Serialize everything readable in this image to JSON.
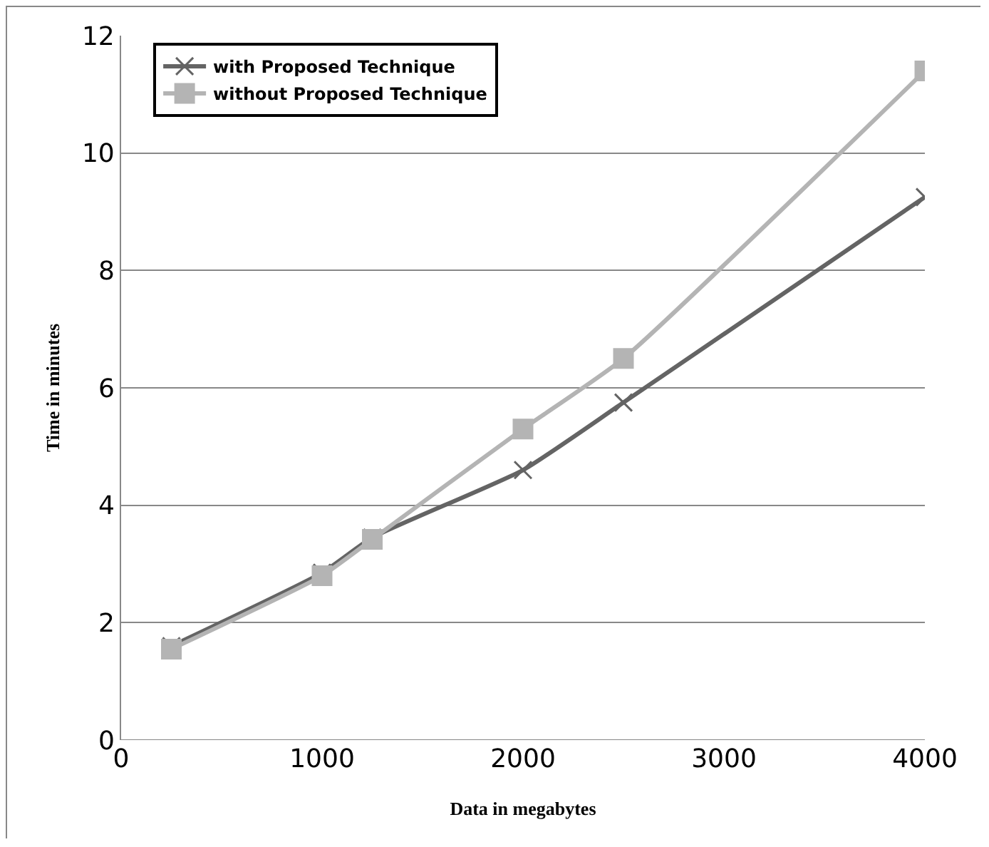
{
  "chart_data": {
    "type": "line",
    "xlabel": "Data in megabytes",
    "ylabel": "Time in minutes",
    "x": [
      250,
      1000,
      1250,
      2000,
      2500,
      4000
    ],
    "series": [
      {
        "name": "with Proposed Technique",
        "color": "#646464",
        "values": [
          1.6,
          2.85,
          3.45,
          4.6,
          5.75,
          9.25
        ],
        "marker": "cross"
      },
      {
        "name": "without Proposed Technique",
        "color": "#b4b4b4",
        "values": [
          1.55,
          2.8,
          3.42,
          5.3,
          6.5,
          11.4
        ],
        "marker": "square"
      }
    ],
    "xlim": [
      0,
      4000
    ],
    "xticks": [
      0,
      1000,
      2000,
      3000,
      4000
    ],
    "ylim": [
      0,
      12
    ],
    "yticks": [
      0,
      2,
      4,
      6,
      8,
      10,
      12
    ],
    "grid": "y",
    "legend": "top left",
    "line_style": "solid"
  }
}
